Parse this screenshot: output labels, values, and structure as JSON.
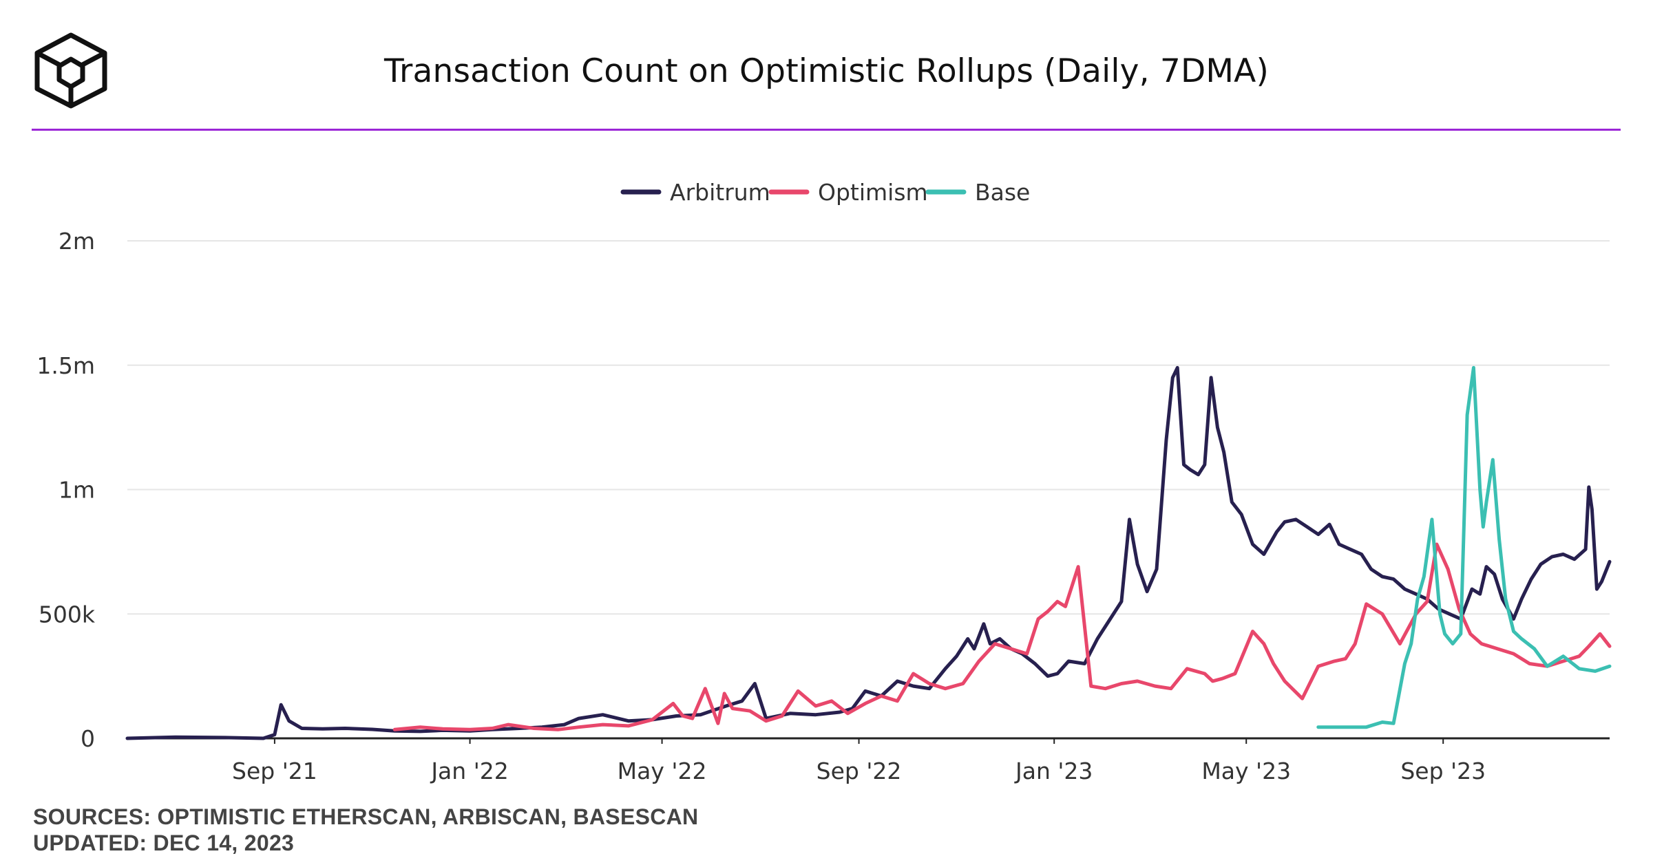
{
  "header": {
    "title": "Transaction Count on Optimistic Rollups (Daily, 7DMA)",
    "logo_icon": "block-cube-logo-icon",
    "accent_color": "#9b26d6"
  },
  "footer": {
    "sources": "SOURCES: OPTIMISTIC ETHERSCAN, ARBISCAN, BASESCAN",
    "updated": "UPDATED: DEC 14, 2023"
  },
  "chart_data": {
    "type": "line",
    "title": "Transaction Count on Optimistic Rollups (Daily, 7DMA)",
    "xlabel": "",
    "ylabel": "",
    "xlim": [
      "2021-06-01",
      "2023-12-14"
    ],
    "ylim": [
      0,
      2000000
    ],
    "grid": true,
    "legend_position": "top-center",
    "y_ticks": [
      {
        "value": 0,
        "label": "0"
      },
      {
        "value": 500000,
        "label": "500k"
      },
      {
        "value": 1000000,
        "label": "1m"
      },
      {
        "value": 1500000,
        "label": "1.5m"
      },
      {
        "value": 2000000,
        "label": "2m"
      }
    ],
    "x_ticks": [
      {
        "value": "2021-09-01",
        "label": "Sep '21"
      },
      {
        "value": "2022-01-01",
        "label": "Jan '22"
      },
      {
        "value": "2022-05-01",
        "label": "May '22"
      },
      {
        "value": "2022-09-01",
        "label": "Sep '22"
      },
      {
        "value": "2023-01-01",
        "label": "Jan '23"
      },
      {
        "value": "2023-05-01",
        "label": "May '23"
      },
      {
        "value": "2023-09-01",
        "label": "Sep '23"
      }
    ],
    "series": [
      {
        "name": "Arbitrum",
        "color": "#27204f",
        "x": [
          "2021-06-01",
          "2021-07-01",
          "2021-08-01",
          "2021-08-25",
          "2021-09-01",
          "2021-09-05",
          "2021-09-10",
          "2021-09-18",
          "2021-10-01",
          "2021-10-15",
          "2021-11-01",
          "2021-11-15",
          "2021-12-01",
          "2021-12-15",
          "2022-01-01",
          "2022-01-15",
          "2022-02-01",
          "2022-02-15",
          "2022-03-01",
          "2022-03-10",
          "2022-03-25",
          "2022-04-10",
          "2022-04-25",
          "2022-05-10",
          "2022-05-25",
          "2022-06-10",
          "2022-06-20",
          "2022-06-28",
          "2022-07-05",
          "2022-07-20",
          "2022-08-05",
          "2022-08-20",
          "2022-08-28",
          "2022-09-05",
          "2022-09-15",
          "2022-09-25",
          "2022-10-05",
          "2022-10-15",
          "2022-10-25",
          "2022-11-01",
          "2022-11-08",
          "2022-11-12",
          "2022-11-18",
          "2022-11-22",
          "2022-11-28",
          "2022-12-05",
          "2022-12-12",
          "2022-12-20",
          "2022-12-28",
          "2023-01-03",
          "2023-01-10",
          "2023-01-20",
          "2023-01-28",
          "2023-02-05",
          "2023-02-12",
          "2023-02-17",
          "2023-02-22",
          "2023-02-28",
          "2023-03-06",
          "2023-03-12",
          "2023-03-16",
          "2023-03-19",
          "2023-03-23",
          "2023-03-27",
          "2023-04-01",
          "2023-04-05",
          "2023-04-09",
          "2023-04-13",
          "2023-04-17",
          "2023-04-22",
          "2023-04-28",
          "2023-05-05",
          "2023-05-12",
          "2023-05-20",
          "2023-05-25",
          "2023-06-01",
          "2023-06-08",
          "2023-06-15",
          "2023-06-22",
          "2023-06-28",
          "2023-07-05",
          "2023-07-12",
          "2023-07-18",
          "2023-07-25",
          "2023-08-01",
          "2023-08-08",
          "2023-08-15",
          "2023-08-22",
          "2023-08-29",
          "2023-09-05",
          "2023-09-12",
          "2023-09-19",
          "2023-09-24",
          "2023-09-28",
          "2023-10-03",
          "2023-10-08",
          "2023-10-15",
          "2023-10-20",
          "2023-10-26",
          "2023-11-01",
          "2023-11-08",
          "2023-11-15",
          "2023-11-22",
          "2023-11-29",
          "2023-12-01",
          "2023-12-03",
          "2023-12-06",
          "2023-12-09",
          "2023-12-14"
        ],
        "values": [
          0,
          5000,
          3000,
          0,
          15000,
          135000,
          70000,
          40000,
          38000,
          40000,
          36000,
          30000,
          28000,
          32000,
          30000,
          35000,
          40000,
          45000,
          55000,
          80000,
          95000,
          70000,
          75000,
          90000,
          95000,
          130000,
          150000,
          220000,
          80000,
          100000,
          95000,
          105000,
          120000,
          190000,
          170000,
          230000,
          210000,
          200000,
          280000,
          330000,
          400000,
          360000,
          460000,
          380000,
          400000,
          360000,
          340000,
          300000,
          250000,
          260000,
          310000,
          300000,
          400000,
          480000,
          550000,
          880000,
          700000,
          590000,
          680000,
          1200000,
          1450000,
          1490000,
          1100000,
          1080000,
          1060000,
          1100000,
          1450000,
          1250000,
          1150000,
          950000,
          900000,
          780000,
          740000,
          830000,
          870000,
          880000,
          850000,
          820000,
          860000,
          780000,
          760000,
          740000,
          680000,
          650000,
          640000,
          600000,
          580000,
          560000,
          520000,
          500000,
          480000,
          600000,
          580000,
          690000,
          660000,
          560000,
          480000,
          560000,
          640000,
          700000,
          730000,
          740000,
          720000,
          760000,
          1010000,
          920000,
          600000,
          630000,
          710000
        ]
      },
      {
        "name": "Optimism",
        "color": "#e8476b",
        "x": [
          "2021-11-15",
          "2021-12-01",
          "2021-12-15",
          "2022-01-01",
          "2022-01-15",
          "2022-01-25",
          "2022-02-10",
          "2022-02-25",
          "2022-03-10",
          "2022-03-25",
          "2022-04-10",
          "2022-04-25",
          "2022-05-08",
          "2022-05-14",
          "2022-05-20",
          "2022-05-28",
          "2022-06-05",
          "2022-06-09",
          "2022-06-14",
          "2022-06-25",
          "2022-07-05",
          "2022-07-15",
          "2022-07-25",
          "2022-08-05",
          "2022-08-15",
          "2022-08-25",
          "2022-09-05",
          "2022-09-15",
          "2022-09-25",
          "2022-10-05",
          "2022-10-15",
          "2022-10-25",
          "2022-11-05",
          "2022-11-15",
          "2022-11-25",
          "2022-12-05",
          "2022-12-15",
          "2022-12-22",
          "2022-12-28",
          "2023-01-03",
          "2023-01-08",
          "2023-01-16",
          "2023-01-24",
          "2023-02-02",
          "2023-02-12",
          "2023-02-22",
          "2023-03-05",
          "2023-03-15",
          "2023-03-25",
          "2023-04-05",
          "2023-04-10",
          "2023-04-16",
          "2023-04-24",
          "2023-05-05",
          "2023-05-12",
          "2023-05-18",
          "2023-05-25",
          "2023-06-05",
          "2023-06-15",
          "2023-06-25",
          "2023-07-02",
          "2023-07-08",
          "2023-07-15",
          "2023-07-25",
          "2023-08-05",
          "2023-08-15",
          "2023-08-22",
          "2023-08-28",
          "2023-09-04",
          "2023-09-11",
          "2023-09-18",
          "2023-09-25",
          "2023-10-05",
          "2023-10-15",
          "2023-10-25",
          "2023-11-05",
          "2023-11-15",
          "2023-11-25",
          "2023-12-01",
          "2023-12-08",
          "2023-12-14"
        ],
        "values": [
          35000,
          45000,
          38000,
          35000,
          40000,
          55000,
          40000,
          35000,
          45000,
          55000,
          50000,
          75000,
          140000,
          90000,
          80000,
          200000,
          60000,
          180000,
          120000,
          110000,
          70000,
          90000,
          190000,
          130000,
          150000,
          100000,
          140000,
          170000,
          150000,
          260000,
          220000,
          200000,
          220000,
          310000,
          380000,
          360000,
          340000,
          480000,
          510000,
          550000,
          530000,
          690000,
          210000,
          200000,
          220000,
          230000,
          210000,
          200000,
          280000,
          260000,
          230000,
          240000,
          260000,
          430000,
          380000,
          300000,
          230000,
          160000,
          290000,
          310000,
          320000,
          380000,
          540000,
          500000,
          380000,
          500000,
          550000,
          780000,
          680000,
          520000,
          420000,
          380000,
          360000,
          340000,
          300000,
          290000,
          310000,
          330000,
          370000,
          420000,
          370000
        ]
      },
      {
        "name": "Base",
        "color": "#3bbfb2",
        "x": [
          "2023-06-15",
          "2023-07-01",
          "2023-07-15",
          "2023-07-25",
          "2023-08-01",
          "2023-08-08",
          "2023-08-12",
          "2023-08-16",
          "2023-08-20",
          "2023-08-25",
          "2023-08-30",
          "2023-09-02",
          "2023-09-07",
          "2023-09-12",
          "2023-09-16",
          "2023-09-20",
          "2023-09-24",
          "2023-09-26",
          "2023-09-28",
          "2023-10-02",
          "2023-10-06",
          "2023-10-10",
          "2023-10-15",
          "2023-10-20",
          "2023-10-28",
          "2023-11-05",
          "2023-11-15",
          "2023-11-25",
          "2023-12-05",
          "2023-12-14"
        ],
        "values": [
          45000,
          45000,
          45000,
          65000,
          60000,
          300000,
          380000,
          560000,
          650000,
          880000,
          500000,
          420000,
          380000,
          420000,
          1300000,
          1490000,
          1000000,
          850000,
          950000,
          1120000,
          800000,
          560000,
          430000,
          400000,
          360000,
          290000,
          330000,
          280000,
          270000,
          290000
        ]
      }
    ]
  }
}
